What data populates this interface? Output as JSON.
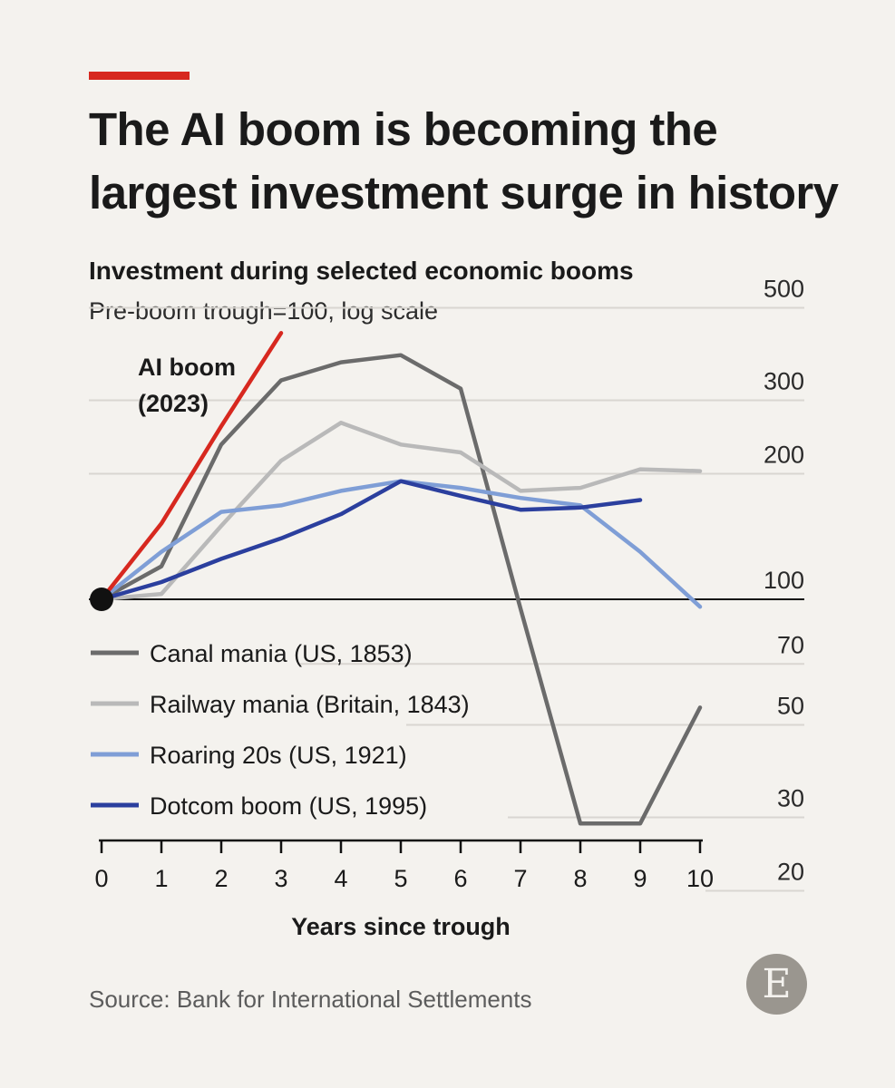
{
  "header": {
    "title": "The AI boom is becoming the largest investment surge in history",
    "subtitle": "Investment during selected economic booms",
    "units": "Pre-boom trough=100, log scale"
  },
  "source": "Source: Bank for International Settlements",
  "logo_letter": "E",
  "colors": {
    "background": "#f4f2ee",
    "accent_rule": "#d7281f",
    "gridline": "#d9d6d1",
    "baseline": "#111111"
  },
  "chart_data": {
    "type": "line",
    "title": "Investment during selected economic booms",
    "subtitle": "Pre-boom trough=100, log scale",
    "xlabel": "Years since trough",
    "ylabel": "",
    "y_scale": "log",
    "xlim": [
      0,
      10
    ],
    "ylim": [
      20,
      500
    ],
    "x_ticks": [
      0,
      1,
      2,
      3,
      4,
      5,
      6,
      7,
      8,
      9,
      10
    ],
    "y_ticks": [
      500,
      300,
      200,
      100,
      70,
      50,
      30,
      20
    ],
    "grid": true,
    "series": [
      {
        "name": "Canal mania (US, 1853)",
        "color": "#6b6b6b",
        "x": [
          0,
          1,
          2,
          3,
          4,
          5,
          6,
          7,
          8,
          9,
          10
        ],
        "y": [
          100,
          120,
          235,
          335,
          370,
          385,
          320,
          95,
          29,
          29,
          55
        ]
      },
      {
        "name": "Railway mania (Britain, 1843)",
        "color": "#b9b9b9",
        "x": [
          0,
          1,
          2,
          3,
          4,
          5,
          6,
          7,
          8,
          9,
          10
        ],
        "y": [
          100,
          103,
          150,
          215,
          265,
          235,
          225,
          182,
          185,
          205,
          203
        ]
      },
      {
        "name": "Roaring 20s (US, 1921)",
        "color": "#7f9ed6",
        "x": [
          0,
          1,
          2,
          3,
          4,
          5,
          6,
          7,
          8,
          9,
          10
        ],
        "y": [
          100,
          130,
          162,
          168,
          182,
          192,
          185,
          175,
          168,
          130,
          96
        ]
      },
      {
        "name": "Dotcom boom (US, 1995)",
        "color": "#2b3f9e",
        "x": [
          0,
          1,
          2,
          3,
          4,
          5,
          6,
          7,
          8,
          9
        ],
        "y": [
          100,
          110,
          125,
          140,
          160,
          192,
          177,
          164,
          166,
          173
        ]
      },
      {
        "name": "AI boom (2023)",
        "color": "#d7281f",
        "x": [
          0,
          1,
          2,
          3
        ],
        "y": [
          100,
          152,
          260,
          435
        ]
      }
    ],
    "annotations": [
      "AI boom",
      "(2023)"
    ],
    "legend_position": "bottom-left"
  }
}
